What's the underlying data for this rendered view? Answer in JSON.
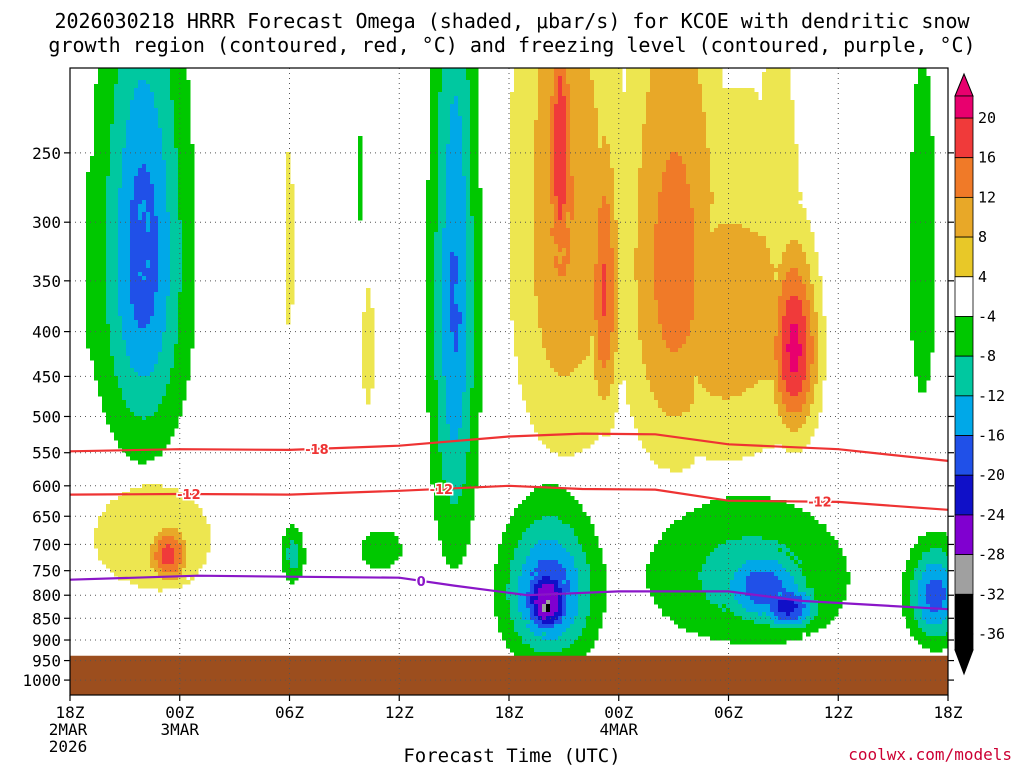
{
  "title": {
    "line1": "2026030218 HRRR Forecast Omega (shaded, μbar/s) for KCOE with dendritic snow",
    "line2": "growth region (contoured, red, °C) and freezing level (contoured, purple, °C)"
  },
  "footer": {
    "x_title": "Forecast Time (UTC)",
    "credit": "coolwx.com/models"
  },
  "chart_data": {
    "type": "heatmap",
    "title": "2026030218 HRRR Forecast Omega (shaded, μbar/s) for KCOE with dendritic snow growth region (contoured, red, °C) and freezing level (contoured, purple, °C)",
    "xlabel": "Forecast Time (UTC)",
    "ylabel": "",
    "x_ticks": [
      {
        "hour": 0,
        "label": "18Z",
        "sub": [
          "2MAR",
          "2026"
        ]
      },
      {
        "hour": 6,
        "label": "00Z",
        "sub": [
          "3MAR"
        ]
      },
      {
        "hour": 12,
        "label": "06Z",
        "sub": []
      },
      {
        "hour": 18,
        "label": "12Z",
        "sub": []
      },
      {
        "hour": 24,
        "label": "18Z",
        "sub": []
      },
      {
        "hour": 30,
        "label": "00Z",
        "sub": [
          "4MAR"
        ]
      },
      {
        "hour": 36,
        "label": "06Z",
        "sub": []
      },
      {
        "hour": 42,
        "label": "12Z",
        "sub": []
      },
      {
        "hour": 48,
        "label": "18Z",
        "sub": []
      }
    ],
    "x_range_hours": [
      0,
      48
    ],
    "y_ticks_hpa": [
      250,
      300,
      350,
      400,
      450,
      500,
      550,
      600,
      650,
      700,
      750,
      800,
      850,
      900,
      950,
      1000
    ],
    "y_range_hpa": [
      200,
      1040
    ],
    "y_scale": "log",
    "grid": true,
    "surface_pressure_hpa": 938,
    "colorbar": {
      "labels": [
        20,
        16,
        12,
        8,
        4,
        -4,
        -8,
        -12,
        -16,
        -20,
        -24,
        -28,
        -32,
        -36
      ],
      "colors": [
        "#e8006e",
        "#f03a3a",
        "#f07a28",
        "#e8a828",
        "#e8c828",
        "#ede650",
        "#ffffff",
        "#00c800",
        "#00c8a0",
        "#00a8e8",
        "#2050e8",
        "#1010c8",
        "#8000d0",
        "#a0a0a0",
        "#000000"
      ]
    },
    "omega_blobs": [
      {
        "hour": 4.0,
        "hpa": 330,
        "rx_h": 2.6,
        "ry_hpa": 220,
        "omega": -16
      },
      {
        "hour": 4.0,
        "hpa": 320,
        "rx_h": 1.3,
        "ry_hpa": 120,
        "omega": -17
      },
      {
        "hour": 1.2,
        "hpa": 340,
        "rx_h": 0.7,
        "ry_hpa": 150,
        "omega": -6
      },
      {
        "hour": 12.0,
        "hpa": 320,
        "rx_h": 0.4,
        "ry_hpa": 180,
        "omega": 5
      },
      {
        "hour": 15.8,
        "hpa": 270,
        "rx_h": 0.2,
        "ry_hpa": 60,
        "omega": -6
      },
      {
        "hour": 16.3,
        "hpa": 420,
        "rx_h": 0.7,
        "ry_hpa": 140,
        "omega": 5
      },
      {
        "hour": 21.0,
        "hpa": 380,
        "rx_h": 1.4,
        "ry_hpa": 340,
        "omega": -15
      },
      {
        "hour": 21.2,
        "hpa": 340,
        "rx_h": 0.5,
        "ry_hpa": 120,
        "omega": -17
      },
      {
        "hour": 27.0,
        "hpa": 300,
        "rx_h": 3.2,
        "ry_hpa": 280,
        "omega": 11
      },
      {
        "hour": 26.8,
        "hpa": 250,
        "rx_h": 0.8,
        "ry_hpa": 120,
        "omega": 19
      },
      {
        "hour": 29.2,
        "hpa": 360,
        "rx_h": 0.9,
        "ry_hpa": 150,
        "omega": 16
      },
      {
        "hour": 33.0,
        "hpa": 330,
        "rx_h": 3.0,
        "ry_hpa": 240,
        "omega": 13
      },
      {
        "hour": 35.8,
        "hpa": 390,
        "rx_h": 5.0,
        "ry_hpa": 200,
        "omega": 10
      },
      {
        "hour": 39.6,
        "hpa": 420,
        "rx_h": 1.4,
        "ry_hpa": 110,
        "omega": 21
      },
      {
        "hour": 38.6,
        "hpa": 300,
        "rx_h": 1.6,
        "ry_hpa": 150,
        "omega": 8
      },
      {
        "hour": 46.6,
        "hpa": 330,
        "rx_h": 1.0,
        "ry_hpa": 200,
        "omega": -7
      },
      {
        "hour": 4.5,
        "hpa": 690,
        "rx_h": 4.5,
        "ry_hpa": 130,
        "omega": 7
      },
      {
        "hour": 5.4,
        "hpa": 720,
        "rx_h": 1.2,
        "ry_hpa": 60,
        "omega": 18
      },
      {
        "hour": 12.2,
        "hpa": 720,
        "rx_h": 0.7,
        "ry_hpa": 60,
        "omega": -10
      },
      {
        "hour": 17.0,
        "hpa": 710,
        "rx_h": 1.8,
        "ry_hpa": 60,
        "omega": -6
      },
      {
        "hour": 26.2,
        "hpa": 790,
        "rx_h": 2.7,
        "ry_hpa": 170,
        "omega": -17
      },
      {
        "hour": 26.1,
        "hpa": 810,
        "rx_h": 1.6,
        "ry_hpa": 90,
        "omega": -27
      },
      {
        "hour": 26.1,
        "hpa": 825,
        "rx_h": 0.6,
        "ry_hpa": 35,
        "omega": -38
      },
      {
        "hour": 37.0,
        "hpa": 760,
        "rx_h": 6.5,
        "ry_hpa": 170,
        "omega": -9
      },
      {
        "hour": 37.8,
        "hpa": 780,
        "rx_h": 2.8,
        "ry_hpa": 90,
        "omega": -18
      },
      {
        "hour": 39.2,
        "hpa": 825,
        "rx_h": 1.8,
        "ry_hpa": 55,
        "omega": -22
      },
      {
        "hour": 47.3,
        "hpa": 800,
        "rx_h": 1.6,
        "ry_hpa": 110,
        "omega": -18
      }
    ],
    "contours": [
      {
        "name": "-18",
        "color": "#ee3333",
        "points": [
          [
            0,
            548
          ],
          [
            6,
            545
          ],
          [
            12,
            546
          ],
          [
            18,
            540
          ],
          [
            24,
            527
          ],
          [
            28,
            523
          ],
          [
            32,
            524
          ],
          [
            36,
            538
          ],
          [
            42,
            545
          ],
          [
            48,
            562
          ]
        ],
        "labels": [
          {
            "hour": 13.5,
            "text": "-18"
          }
        ]
      },
      {
        "name": "-12",
        "color": "#ee3333",
        "points": [
          [
            0,
            614
          ],
          [
            6,
            613
          ],
          [
            12,
            614
          ],
          [
            18,
            608
          ],
          [
            24,
            600
          ],
          [
            28,
            605
          ],
          [
            32,
            606
          ],
          [
            36,
            624
          ],
          [
            42,
            626
          ],
          [
            48,
            639
          ]
        ],
        "labels": [
          {
            "hour": 6.5,
            "text": "-12"
          },
          {
            "hour": 20.3,
            "text": "-12"
          },
          {
            "hour": 41.0,
            "text": "-12"
          }
        ]
      },
      {
        "name": "0",
        "color": "#8a16c8",
        "points": [
          [
            0,
            768
          ],
          [
            7,
            760
          ],
          [
            12,
            762
          ],
          [
            18,
            764
          ],
          [
            21,
            780
          ],
          [
            25,
            800
          ],
          [
            30,
            792
          ],
          [
            36,
            792
          ],
          [
            40,
            812
          ],
          [
            48,
            830
          ]
        ],
        "labels": [
          {
            "hour": 19.2,
            "text": "0"
          }
        ]
      }
    ]
  }
}
